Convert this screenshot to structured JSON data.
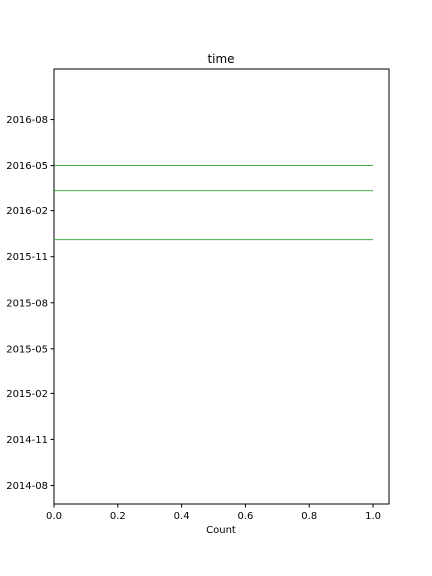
{
  "chart_data": {
    "type": "bar",
    "orientation": "horizontal",
    "title": "time",
    "xlabel": "Count",
    "ylabel": "",
    "xlim": [
      0,
      1.05
    ],
    "ylim": [
      "2014-06-25",
      "2016-11-10"
    ],
    "x_ticks": [
      0.0,
      0.2,
      0.4,
      0.6,
      0.8,
      1.0
    ],
    "x_tick_labels": [
      "0.0",
      "0.2",
      "0.4",
      "0.6",
      "0.8",
      "1.0"
    ],
    "y_ticks": [
      "2014-08-01",
      "2014-11-01",
      "2015-02-01",
      "2015-05-01",
      "2015-08-01",
      "2015-11-01",
      "2016-02-01",
      "2016-05-01",
      "2016-08-01"
    ],
    "y_tick_labels": [
      "2014-08",
      "2014-11",
      "2015-02",
      "2015-05",
      "2015-08",
      "2015-11",
      "2016-02",
      "2016-05",
      "2016-08"
    ],
    "grid": false,
    "bar_color": "#2ca02c",
    "bars": [
      {
        "date": "2015-12-05",
        "value": 1
      },
      {
        "date": "2016-03-12",
        "value": 1
      },
      {
        "date": "2016-05-01",
        "value": 1
      }
    ]
  }
}
